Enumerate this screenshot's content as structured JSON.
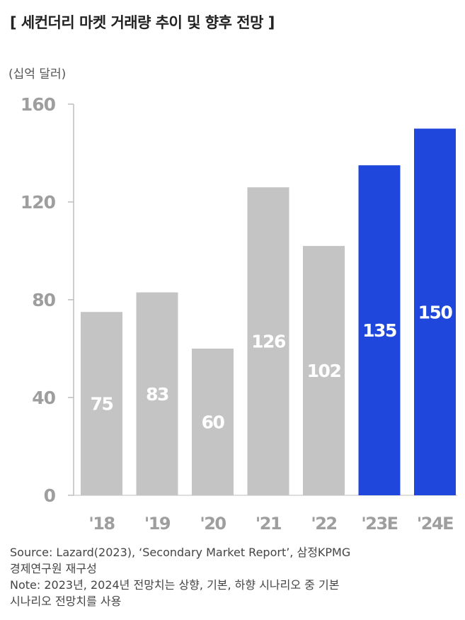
{
  "title": "[ 세컨더리 마켓 거래량 추이 및 향후 전망 ]",
  "unit_label": "(십억 달러)",
  "chart_data": {
    "type": "bar",
    "categories": [
      "'18",
      "'19",
      "'20",
      "'21",
      "'22",
      "'23E",
      "'24E"
    ],
    "values": [
      75,
      83,
      60,
      126,
      102,
      135,
      150
    ],
    "data_labels": [
      "75",
      "83",
      "60",
      "126",
      "102",
      "135",
      "150"
    ],
    "colors": [
      "#c4c4c4",
      "#c4c4c4",
      "#c4c4c4",
      "#c4c4c4",
      "#c4c4c4",
      "#1f47dc",
      "#1f47dc"
    ],
    "ylim": [
      0,
      160
    ],
    "yticks": [
      "0",
      "40",
      "80",
      "120",
      "160"
    ],
    "ytick_values": [
      0,
      40,
      80,
      120,
      160
    ],
    "grid": false
  },
  "notes": [
    "Source: Lazard(2023), ‘Secondary Market Report’, 삼정KPMG",
    "경제연구원 재구성",
    "Note: 2023년, 2024년 전망치는 상향, 기본, 하향 시나리오 중 기본",
    "시나리오 전망치를 사용"
  ]
}
